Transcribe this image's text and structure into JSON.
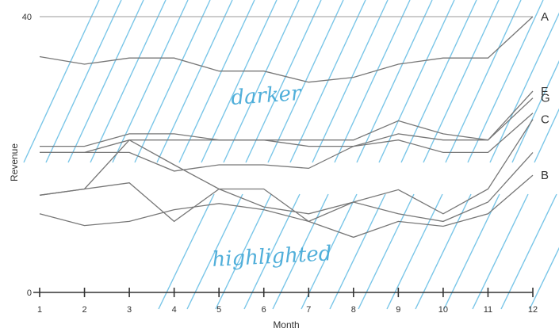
{
  "chart_data": {
    "type": "line",
    "xlabel": "Month",
    "ylabel": "Revenue",
    "x": [
      1,
      2,
      3,
      4,
      5,
      6,
      7,
      8,
      9,
      10,
      11,
      12
    ],
    "ylim": [
      0,
      40
    ],
    "y_ticks": [
      0,
      40
    ],
    "grid": false,
    "series": [
      {
        "name": "A",
        "values": [
          34.2,
          33.1,
          34.0,
          34.0,
          32.1,
          32.1,
          30.5,
          31.2,
          33.1,
          34.0,
          34.0,
          40.0
        ]
      },
      {
        "name": "F",
        "values": [
          21.2,
          21.2,
          23.0,
          23.0,
          22.1,
          22.1,
          22.1,
          22.1,
          24.9,
          23.0,
          22.1,
          29.2
        ]
      },
      {
        "name": "G",
        "values": [
          20.3,
          20.3,
          22.1,
          22.1,
          22.1,
          22.1,
          21.2,
          21.2,
          23.0,
          22.1,
          22.1,
          28.2
        ]
      },
      {
        "name": "C",
        "values": [
          14.1,
          15.0,
          22.1,
          18.5,
          15.0,
          12.4,
          11.4,
          13.1,
          14.9,
          11.4,
          15.0,
          25.1
        ]
      },
      {
        "name": "B",
        "values": [
          11.4,
          9.7,
          10.3,
          12.0,
          12.9,
          12.0,
          10.3,
          8.0,
          10.3,
          9.6,
          11.4,
          17.0
        ]
      },
      {
        "name": "",
        "values": [
          20.3,
          20.3,
          20.3,
          17.6,
          18.5,
          18.5,
          18.0,
          21.2,
          22.1,
          20.3,
          20.3,
          26.0
        ]
      },
      {
        "name": "",
        "values": [
          14.1,
          15.0,
          15.9,
          10.3,
          15.0,
          15.0,
          10.3,
          13.1,
          11.4,
          10.3,
          13.1,
          20.3
        ]
      }
    ],
    "annotations": [
      "darker",
      "highlighted"
    ]
  }
}
